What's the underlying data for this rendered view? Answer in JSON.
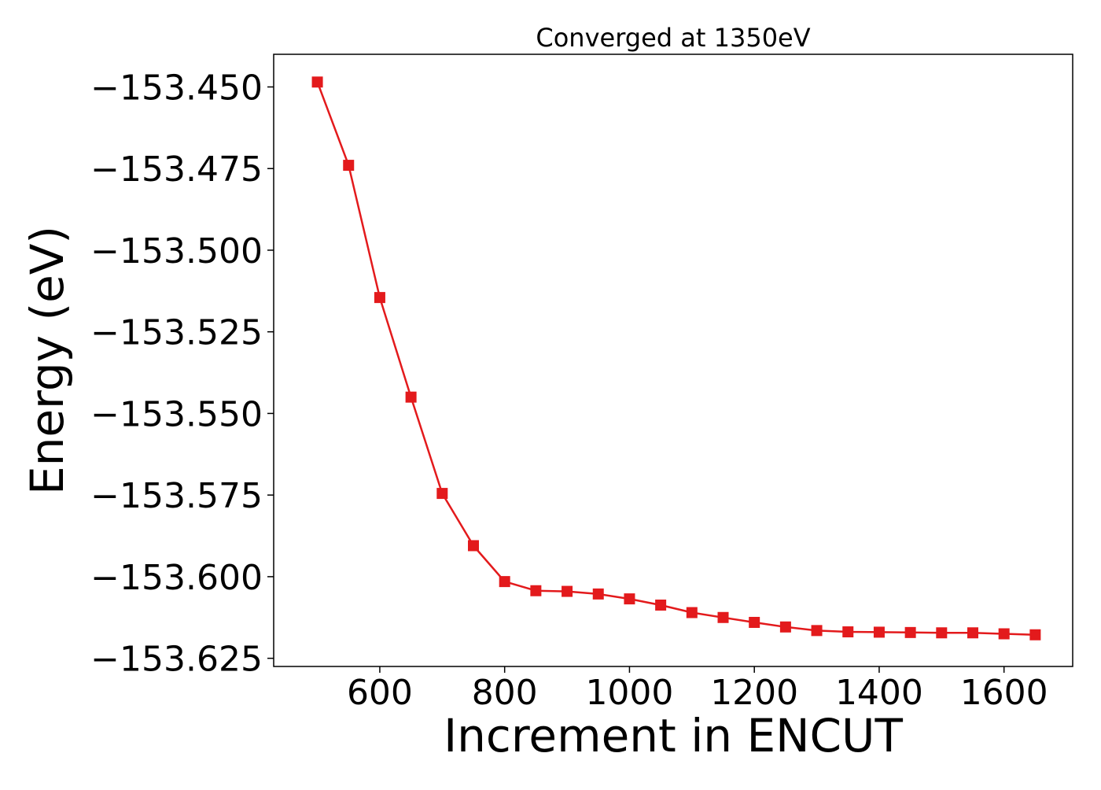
{
  "chart_data": {
    "type": "line",
    "title": "Converged at 1350eV",
    "xlabel": "Increment in ENCUT",
    "ylabel": "Energy (eV)",
    "xlim": [
      430,
      1710
    ],
    "ylim": [
      -153.6275,
      -153.44
    ],
    "xticks": [
      600,
      800,
      1000,
      1200,
      1400,
      1600
    ],
    "yticks": [
      -153.45,
      -153.475,
      -153.5,
      -153.525,
      -153.55,
      -153.575,
      -153.6,
      -153.625
    ],
    "ytick_labels": [
      "−153.450",
      "−153.475",
      "−153.500",
      "−153.525",
      "−153.550",
      "−153.575",
      "−153.600",
      "−153.625"
    ],
    "grid": false,
    "series": [
      {
        "color": "#e31a1c",
        "marker": "square",
        "x": [
          500,
          550,
          600,
          650,
          700,
          750,
          800,
          850,
          900,
          950,
          1000,
          1050,
          1100,
          1150,
          1200,
          1250,
          1300,
          1350,
          1400,
          1450,
          1500,
          1550,
          1600,
          1650
        ],
        "y": [
          -153.4485,
          -153.474,
          -153.5145,
          -153.545,
          -153.5745,
          -153.5905,
          -153.6015,
          -153.6043,
          -153.6045,
          -153.6053,
          -153.6068,
          -153.6087,
          -153.611,
          -153.6125,
          -153.614,
          -153.6154,
          -153.6165,
          -153.6169,
          -153.617,
          -153.6171,
          -153.6172,
          -153.6172,
          -153.6175,
          -153.6178
        ]
      }
    ]
  }
}
